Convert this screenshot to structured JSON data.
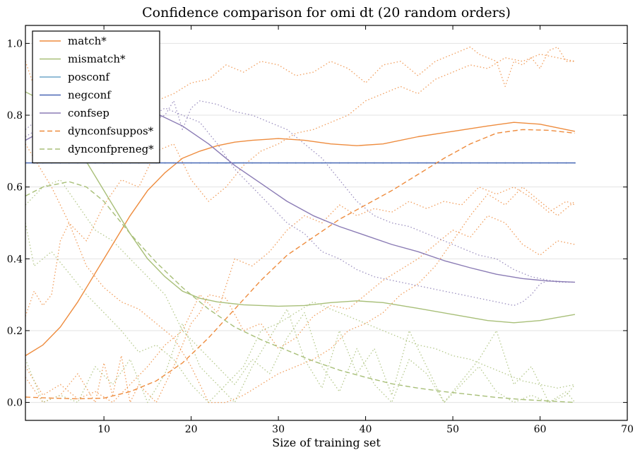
{
  "chart_data": {
    "type": "line",
    "title": "Confidence comparison for omi dt (20 random orders)",
    "xlabel": "Size of training set",
    "ylabel": "",
    "xlim": [
      1,
      70
    ],
    "ylim": [
      -0.05,
      1.05
    ],
    "xticks": [
      10,
      20,
      30,
      40,
      50,
      60,
      70
    ],
    "yticks": [
      0.0,
      0.2,
      0.4,
      0.6,
      0.8,
      1.0
    ],
    "ytick_labels": [
      "0.0",
      "0.2",
      "0.4",
      "0.6",
      "0.8",
      "1.0"
    ],
    "grid": "horizontal",
    "legend_position": "top-left",
    "series": [
      {
        "name": "match*",
        "color": "#ee8c3e",
        "style": "solid",
        "x": [
          1,
          3,
          5,
          7,
          9,
          11,
          13,
          15,
          17,
          19,
          21,
          23,
          25,
          27,
          30,
          33,
          36,
          39,
          42,
          46,
          50,
          54,
          57,
          60,
          64
        ],
        "y": [
          0.13,
          0.16,
          0.21,
          0.28,
          0.36,
          0.44,
          0.52,
          0.59,
          0.64,
          0.68,
          0.7,
          0.715,
          0.725,
          0.73,
          0.735,
          0.73,
          0.72,
          0.715,
          0.72,
          0.74,
          0.755,
          0.77,
          0.78,
          0.775,
          0.755
        ]
      },
      {
        "name": "mismatch*",
        "color": "#a8bf78",
        "style": "solid",
        "x": [
          1,
          3,
          5,
          7,
          9,
          11,
          13,
          15,
          17,
          19,
          21,
          23,
          26,
          30,
          33,
          36,
          39,
          42,
          46,
          50,
          54,
          57,
          60,
          64
        ],
        "y": [
          0.865,
          0.84,
          0.79,
          0.71,
          0.63,
          0.55,
          0.47,
          0.4,
          0.35,
          0.31,
          0.29,
          0.28,
          0.272,
          0.268,
          0.27,
          0.278,
          0.283,
          0.278,
          0.262,
          0.245,
          0.228,
          0.222,
          0.228,
          0.245
        ]
      },
      {
        "name": "posconf",
        "color": "#6ea6c9",
        "style": "solid",
        "x": [
          1,
          64
        ],
        "y": [
          0.667,
          0.667
        ]
      },
      {
        "name": "negconf",
        "color": "#4b67b6",
        "style": "solid",
        "x": [
          1,
          64
        ],
        "y": [
          0.667,
          0.667
        ]
      },
      {
        "name": "confsep",
        "color": "#8b7cb5",
        "style": "solid",
        "x": [
          1,
          4,
          7,
          10,
          13,
          16,
          19,
          22,
          25,
          28,
          31,
          34,
          37,
          40,
          43,
          46,
          49,
          52,
          55,
          58,
          61,
          64
        ],
        "y": [
          0.73,
          0.77,
          0.795,
          0.81,
          0.815,
          0.805,
          0.77,
          0.72,
          0.66,
          0.61,
          0.56,
          0.52,
          0.49,
          0.465,
          0.44,
          0.42,
          0.395,
          0.375,
          0.357,
          0.345,
          0.338,
          0.335
        ]
      },
      {
        "name": "dynconfsuppos*",
        "color": "#ee8c3e",
        "style": "dashed",
        "x": [
          1,
          4,
          7,
          10,
          13,
          16,
          19,
          22,
          25,
          28,
          31,
          34,
          37,
          40,
          43,
          46,
          49,
          52,
          55,
          58,
          61,
          64
        ],
        "y": [
          0.015,
          0.012,
          0.01,
          0.012,
          0.03,
          0.06,
          0.11,
          0.18,
          0.26,
          0.34,
          0.41,
          0.46,
          0.51,
          0.55,
          0.59,
          0.635,
          0.68,
          0.72,
          0.75,
          0.76,
          0.758,
          0.75
        ]
      },
      {
        "name": "dynconfpreneg*",
        "color": "#a8bf78",
        "style": "dashed",
        "x": [
          1,
          3,
          6,
          8,
          10,
          13,
          16,
          19,
          22,
          25,
          28,
          31,
          34,
          37,
          40,
          43,
          46,
          49,
          52,
          55,
          58,
          61,
          64
        ],
        "y": [
          0.575,
          0.6,
          0.615,
          0.6,
          0.56,
          0.47,
          0.39,
          0.32,
          0.26,
          0.21,
          0.175,
          0.145,
          0.115,
          0.09,
          0.07,
          0.052,
          0.04,
          0.03,
          0.022,
          0.014,
          0.008,
          0.004,
          0.0
        ]
      }
    ],
    "background_series": [
      {
        "color": "#ee8c3e",
        "style": "dotted",
        "x": [
          1,
          2,
          3,
          4,
          5,
          6,
          7,
          8,
          9,
          10,
          12,
          14,
          16,
          18,
          20,
          22,
          24,
          26,
          28,
          30,
          32,
          34,
          36,
          38,
          40,
          42,
          44,
          46,
          48,
          50,
          52,
          53,
          54,
          55,
          56,
          57,
          58,
          59,
          60,
          61,
          62,
          63,
          64
        ],
        "y": [
          0.95,
          0.88,
          0.83,
          0.8,
          0.82,
          0.84,
          0.86,
          0.85,
          0.84,
          0.86,
          0.88,
          0.85,
          0.84,
          0.86,
          0.89,
          0.9,
          0.94,
          0.92,
          0.95,
          0.94,
          0.91,
          0.92,
          0.95,
          0.93,
          0.89,
          0.94,
          0.95,
          0.91,
          0.95,
          0.97,
          0.99,
          0.97,
          0.96,
          0.95,
          0.88,
          0.95,
          0.94,
          0.96,
          0.93,
          0.98,
          0.99,
          0.95,
          0.95
        ]
      },
      {
        "color": "#ee8c3e",
        "style": "dotted",
        "x": [
          1,
          2,
          3,
          4,
          5,
          6,
          8,
          10,
          12,
          14,
          16,
          18,
          20,
          22,
          24,
          26,
          28,
          30,
          32,
          34,
          36,
          38,
          40,
          42,
          44,
          46,
          48,
          50,
          52,
          54,
          56,
          58,
          60,
          62,
          64
        ],
        "y": [
          0.24,
          0.31,
          0.27,
          0.3,
          0.45,
          0.5,
          0.45,
          0.55,
          0.62,
          0.6,
          0.7,
          0.72,
          0.62,
          0.56,
          0.6,
          0.66,
          0.7,
          0.72,
          0.75,
          0.76,
          0.78,
          0.8,
          0.84,
          0.86,
          0.88,
          0.86,
          0.9,
          0.92,
          0.94,
          0.93,
          0.96,
          0.95,
          0.97,
          0.96,
          0.95
        ]
      },
      {
        "color": "#ee8c3e",
        "style": "dotted",
        "x": [
          1,
          3,
          5,
          7,
          9,
          11,
          13,
          15,
          17,
          19,
          21,
          23,
          25,
          27,
          29,
          31,
          33,
          35,
          37,
          39,
          41,
          43,
          45,
          47,
          49,
          51,
          53,
          55,
          57,
          59,
          61,
          63,
          64
        ],
        "y": [
          0.1,
          0.02,
          0.05,
          0.01,
          0.03,
          0.0,
          0.05,
          0.1,
          0.16,
          0.2,
          0.3,
          0.25,
          0.4,
          0.38,
          0.42,
          0.48,
          0.52,
          0.5,
          0.55,
          0.52,
          0.54,
          0.53,
          0.56,
          0.54,
          0.56,
          0.55,
          0.6,
          0.58,
          0.6,
          0.57,
          0.53,
          0.56,
          0.55
        ]
      },
      {
        "color": "#ee8c3e",
        "style": "dotted",
        "x": [
          1,
          3,
          5,
          7,
          9,
          10,
          11,
          12,
          13,
          14,
          16,
          18,
          20,
          21,
          22,
          24,
          26,
          28,
          30,
          32,
          34,
          36,
          38,
          40,
          42,
          44,
          46,
          48,
          50,
          52,
          54,
          56,
          58,
          60,
          62,
          64
        ],
        "y": [
          0.07,
          0.0,
          0.02,
          0.08,
          0.0,
          0.11,
          0.02,
          0.13,
          0.0,
          0.05,
          0.0,
          0.1,
          0.22,
          0.25,
          0.3,
          0.29,
          0.2,
          0.22,
          0.15,
          0.18,
          0.24,
          0.27,
          0.26,
          0.3,
          0.34,
          0.37,
          0.4,
          0.44,
          0.48,
          0.46,
          0.52,
          0.5,
          0.44,
          0.41,
          0.45,
          0.44
        ]
      },
      {
        "color": "#ee8c3e",
        "style": "dotted",
        "x": [
          1,
          2,
          4,
          6,
          8,
          10,
          12,
          14,
          16,
          18,
          20,
          22,
          24,
          25,
          26,
          28,
          30,
          32,
          34,
          36,
          38,
          40,
          42,
          44,
          46,
          48,
          50,
          52,
          54,
          56,
          58,
          60,
          62,
          64
        ],
        "y": [
          0.72,
          0.68,
          0.6,
          0.5,
          0.38,
          0.32,
          0.28,
          0.26,
          0.22,
          0.18,
          0.1,
          0.0,
          0.0,
          0.01,
          0.02,
          0.05,
          0.08,
          0.1,
          0.12,
          0.15,
          0.2,
          0.22,
          0.25,
          0.3,
          0.33,
          0.38,
          0.45,
          0.52,
          0.58,
          0.55,
          0.6,
          0.56,
          0.52,
          0.56
        ]
      },
      {
        "color": "#a8bf78",
        "style": "dotted",
        "x": [
          1,
          2,
          4,
          6,
          8,
          10,
          12,
          14,
          16,
          18,
          20,
          22,
          24,
          26,
          28,
          30,
          32,
          34,
          36,
          38,
          40,
          42,
          44,
          46,
          48,
          50,
          52,
          54,
          56,
          58,
          60,
          62,
          64
        ],
        "y": [
          0.5,
          0.38,
          0.42,
          0.36,
          0.3,
          0.25,
          0.2,
          0.14,
          0.16,
          0.12,
          0.05,
          0.0,
          0.05,
          0.1,
          0.2,
          0.22,
          0.25,
          0.28,
          0.26,
          0.24,
          0.22,
          0.2,
          0.18,
          0.16,
          0.15,
          0.13,
          0.12,
          0.1,
          0.08,
          0.06,
          0.05,
          0.04,
          0.05
        ]
      },
      {
        "color": "#a8bf78",
        "style": "dotted",
        "x": [
          1,
          3,
          5,
          7,
          9,
          11,
          13,
          15,
          17,
          19,
          21,
          23,
          25,
          27,
          29,
          31,
          33,
          35,
          37,
          39,
          41,
          43,
          45,
          47,
          49,
          51,
          53,
          55,
          57,
          59,
          61,
          63,
          64
        ],
        "y": [
          0.55,
          0.6,
          0.62,
          0.55,
          0.48,
          0.45,
          0.4,
          0.35,
          0.3,
          0.2,
          0.15,
          0.1,
          0.05,
          0.12,
          0.08,
          0.18,
          0.25,
          0.1,
          0.03,
          0.15,
          0.05,
          0.0,
          0.12,
          0.08,
          0.0,
          0.05,
          0.1,
          0.03,
          0.0,
          0.02,
          0.0,
          0.02,
          0.05
        ]
      },
      {
        "color": "#a8bf78",
        "style": "dotted",
        "x": [
          1,
          3,
          5,
          7,
          9,
          11,
          13,
          15,
          17,
          19,
          21,
          23,
          25,
          27,
          29,
          31,
          33,
          35,
          37,
          39,
          41,
          43,
          45,
          47,
          49,
          51,
          53,
          55,
          57,
          59,
          61,
          63,
          64
        ],
        "y": [
          0.12,
          0.0,
          0.02,
          0.0,
          0.1,
          0.05,
          0.12,
          0.0,
          0.08,
          0.22,
          0.1,
          0.05,
          0.0,
          0.1,
          0.18,
          0.26,
          0.12,
          0.04,
          0.2,
          0.08,
          0.15,
          0.02,
          0.2,
          0.1,
          0.0,
          0.06,
          0.12,
          0.2,
          0.05,
          0.1,
          0.0,
          0.03,
          0.0
        ]
      },
      {
        "color": "#8b7cb5",
        "style": "dotted",
        "x": [
          1,
          3,
          6,
          9,
          12,
          15,
          17,
          18,
          19,
          20,
          21,
          23,
          25,
          27,
          29,
          31,
          33,
          35,
          37,
          39,
          41,
          43,
          45,
          47,
          49,
          51,
          53,
          55,
          57,
          59,
          61,
          63,
          64
        ],
        "y": [
          0.76,
          0.8,
          0.79,
          0.8,
          0.82,
          0.78,
          0.8,
          0.84,
          0.76,
          0.82,
          0.84,
          0.83,
          0.81,
          0.8,
          0.78,
          0.76,
          0.72,
          0.68,
          0.62,
          0.56,
          0.52,
          0.5,
          0.49,
          0.47,
          0.45,
          0.43,
          0.41,
          0.4,
          0.37,
          0.35,
          0.34,
          0.335,
          0.335
        ]
      },
      {
        "color": "#8b7cb5",
        "style": "dotted",
        "x": [
          1,
          3,
          6,
          9,
          12,
          15,
          17,
          19,
          21,
          23,
          25,
          27,
          29,
          31,
          33,
          35,
          37,
          39,
          41,
          43,
          45,
          47,
          49,
          51,
          53,
          55,
          57,
          58,
          59,
          60,
          61,
          62,
          63,
          64
        ],
        "y": [
          0.74,
          0.77,
          0.76,
          0.78,
          0.8,
          0.79,
          0.82,
          0.8,
          0.78,
          0.72,
          0.65,
          0.6,
          0.55,
          0.5,
          0.47,
          0.42,
          0.4,
          0.37,
          0.35,
          0.34,
          0.33,
          0.32,
          0.31,
          0.3,
          0.29,
          0.28,
          0.27,
          0.28,
          0.3,
          0.33,
          0.34,
          0.335,
          0.335,
          0.335
        ]
      }
    ]
  }
}
